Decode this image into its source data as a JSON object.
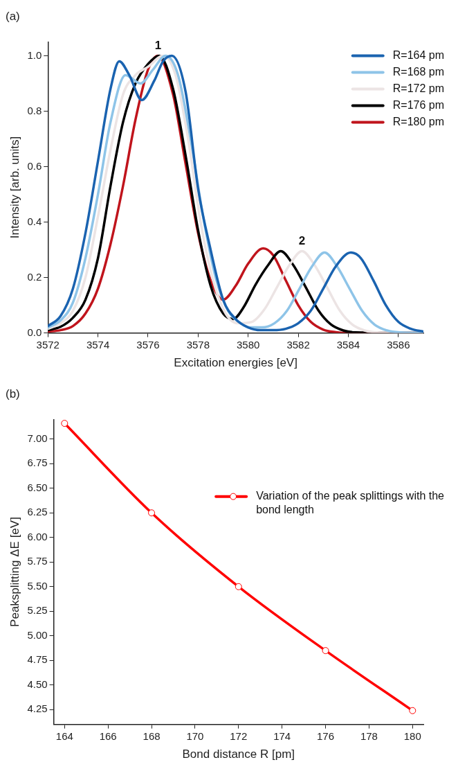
{
  "chart_data": [
    {
      "type": "line",
      "title": "(a)",
      "xlabel": "Excitation energies [eV]",
      "ylabel": "Intensity [arb. units]",
      "xlim": [
        3572,
        3587
      ],
      "xticks": [
        3572,
        3574,
        3576,
        3578,
        3580,
        3582,
        3584,
        3586
      ],
      "ylim": [
        0,
        1.05
      ],
      "yticks": [
        {
          "value": 0,
          "label": "0.0"
        },
        {
          "value": 0.2,
          "label": "0.2"
        },
        {
          "value": 0.4,
          "label": "0.4"
        },
        {
          "value": 0.6,
          "label": "0.6"
        },
        {
          "value": 0.8,
          "label": "0.8"
        },
        {
          "value": 1,
          "label": "1.0"
        }
      ],
      "legend": "top right",
      "marker": "none",
      "line_style": "solid",
      "annotations": [
        {
          "text": "1",
          "x": 3576.4,
          "y": 1.0
        },
        {
          "text": "2",
          "x": 3582.15,
          "y": 0.295
        }
      ],
      "series": [
        {
          "name": "R=164 pm",
          "color": "#1a63b0",
          "x": [
            3572,
            3572.5,
            3573,
            3573.5,
            3574,
            3574.5,
            3574.85,
            3575.25,
            3575.75,
            3576.25,
            3576.6,
            3576.95,
            3577.5,
            3578,
            3578.5,
            3579,
            3579.5,
            3580,
            3580.5,
            3581,
            3581.5,
            3582,
            3582.5,
            3583,
            3583.5,
            3584.1,
            3584.5,
            3585,
            3585.5,
            3586,
            3586.5,
            3587
          ],
          "values": [
            0.025,
            0.06,
            0.16,
            0.36,
            0.62,
            0.88,
            0.98,
            0.93,
            0.84,
            0.91,
            0.98,
            1.0,
            0.87,
            0.52,
            0.3,
            0.12,
            0.05,
            0.02,
            0.01,
            0.01,
            0.015,
            0.035,
            0.08,
            0.16,
            0.24,
            0.29,
            0.27,
            0.19,
            0.1,
            0.04,
            0.015,
            0.005
          ]
        },
        {
          "name": "R=168 pm",
          "color": "#8ec4e8",
          "x": [
            3572,
            3572.5,
            3573,
            3573.5,
            3574,
            3574.5,
            3575.1,
            3575.7,
            3576.2,
            3576.7,
            3577.2,
            3577.7,
            3578.2,
            3578.7,
            3579.2,
            3579.7,
            3580.05,
            3580.55,
            3581.05,
            3581.55,
            3582.05,
            3582.55,
            3583.05,
            3583.55,
            3584.05,
            3584.55,
            3585.05,
            3585.55,
            3586.05,
            3587
          ],
          "values": [
            0.02,
            0.045,
            0.11,
            0.27,
            0.5,
            0.76,
            0.93,
            0.9,
            0.95,
            1.0,
            0.93,
            0.7,
            0.42,
            0.2,
            0.08,
            0.035,
            0.02,
            0.02,
            0.035,
            0.08,
            0.16,
            0.24,
            0.29,
            0.24,
            0.16,
            0.08,
            0.03,
            0.009,
            0.002,
            0
          ]
        },
        {
          "name": "R=172 pm",
          "color": "#ece4e4",
          "x": [
            3572,
            3572.5,
            3573,
            3573.5,
            3574,
            3574.5,
            3575,
            3575.5,
            3576,
            3576.6,
            3577.1,
            3577.6,
            3578.1,
            3578.6,
            3579.1,
            3579.6,
            3580.15,
            3580.65,
            3581.15,
            3581.65,
            3582.15,
            3582.65,
            3583.15,
            3583.65,
            3584.15,
            3584.65,
            3585.15,
            3587
          ],
          "values": [
            0.015,
            0.035,
            0.08,
            0.2,
            0.42,
            0.66,
            0.86,
            0.93,
            0.96,
            1.0,
            0.93,
            0.7,
            0.4,
            0.19,
            0.07,
            0.035,
            0.04,
            0.085,
            0.165,
            0.245,
            0.295,
            0.245,
            0.165,
            0.082,
            0.031,
            0.009,
            0.002,
            0
          ]
        },
        {
          "name": "R=176 pm",
          "color": "#000000",
          "x": [
            3572,
            3572.5,
            3573,
            3573.5,
            3574,
            3574.5,
            3575,
            3575.5,
            3576,
            3576.45,
            3577,
            3577.5,
            3578,
            3578.5,
            3579,
            3579.4,
            3579.8,
            3580.3,
            3580.8,
            3581.3,
            3581.8,
            3582.3,
            3582.8,
            3583.3,
            3583.8,
            3584.3,
            3587
          ],
          "values": [
            0.01,
            0.022,
            0.055,
            0.12,
            0.27,
            0.53,
            0.76,
            0.9,
            0.97,
            1.0,
            0.88,
            0.64,
            0.37,
            0.17,
            0.07,
            0.05,
            0.09,
            0.175,
            0.245,
            0.295,
            0.245,
            0.165,
            0.082,
            0.031,
            0.009,
            0.002,
            0
          ]
        },
        {
          "name": "R=180 pm",
          "color": "#c0141c",
          "x": [
            3572,
            3572.5,
            3573,
            3573.5,
            3574,
            3574.5,
            3575,
            3575.5,
            3576,
            3576.4,
            3577,
            3577.5,
            3578,
            3578.5,
            3579,
            3579.5,
            3580,
            3580.6,
            3581,
            3581.5,
            3582,
            3582.5,
            3583,
            3583.5,
            3584,
            3587
          ],
          "values": [
            0.005,
            0.01,
            0.025,
            0.07,
            0.16,
            0.32,
            0.53,
            0.77,
            0.95,
            1.0,
            0.86,
            0.61,
            0.36,
            0.19,
            0.12,
            0.17,
            0.25,
            0.305,
            0.28,
            0.19,
            0.1,
            0.04,
            0.012,
            0.003,
            0,
            0
          ]
        }
      ]
    },
    {
      "type": "line",
      "title": "(b)",
      "xlabel": "Bond distance R [pm]",
      "ylabel": "Peaksplitting ΔE [eV]",
      "xlim": [
        163.5,
        180.5
      ],
      "xticks": [
        164,
        166,
        168,
        170,
        172,
        174,
        176,
        178,
        180
      ],
      "ylim": [
        4.1,
        7.2
      ],
      "yticks": [
        {
          "value": 4.25,
          "label": "4.25"
        },
        {
          "value": 4.5,
          "label": "4.50"
        },
        {
          "value": 4.75,
          "label": "4.75"
        },
        {
          "value": 5,
          "label": "5.00"
        },
        {
          "value": 5.25,
          "label": "5.25"
        },
        {
          "value": 5.5,
          "label": "5.50"
        },
        {
          "value": 5.75,
          "label": "5.75"
        },
        {
          "value": 6,
          "label": "6.00"
        },
        {
          "value": 6.25,
          "label": "6.25"
        },
        {
          "value": 6.5,
          "label": "6.50"
        },
        {
          "value": 6.75,
          "label": "6.75"
        },
        {
          "value": 7,
          "label": "7.00"
        }
      ],
      "legend": "right",
      "marker": "circle",
      "line_style": "solid",
      "series": [
        {
          "name": "Variation of the peak splittings with the bond length",
          "color": "#ff0000",
          "x": [
            164,
            168,
            172,
            176,
            180
          ],
          "values": [
            7.16,
            6.25,
            5.5,
            4.85,
            4.24
          ]
        }
      ]
    }
  ]
}
